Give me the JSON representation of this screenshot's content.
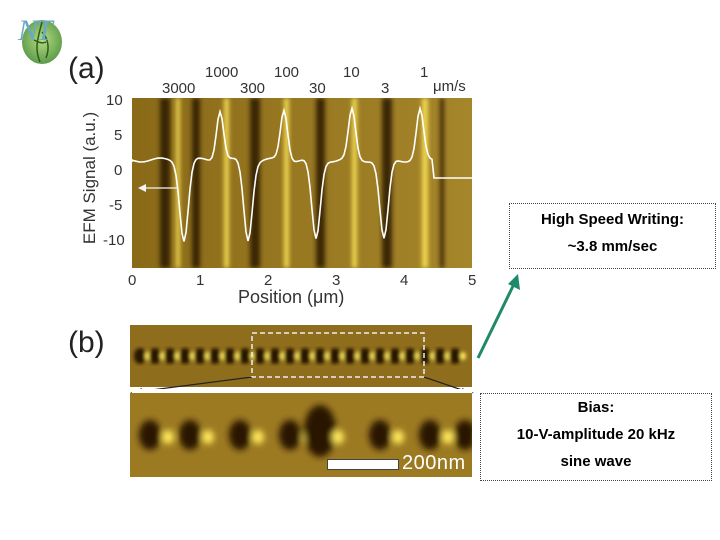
{
  "logo": {
    "text": "NT"
  },
  "panel_a": {
    "label": "(a)",
    "speed_top": [
      "1000",
      "100",
      "10",
      "1"
    ],
    "speed_bottom": [
      "3000",
      "300",
      "30",
      "3"
    ],
    "speed_unit": "μm/s",
    "y_label": "EFM Signal (a.u.)",
    "y_ticks": [
      "10",
      "5",
      "0",
      "-5",
      "-10"
    ],
    "x_ticks": [
      "0",
      "1",
      "2",
      "3",
      "4",
      "5"
    ],
    "x_label": "Position (μm)"
  },
  "panel_b": {
    "label": "(b)",
    "scale_bar": "200nm"
  },
  "note_speed": {
    "line1": "High Speed Writing:",
    "line2": "~3.8 mm/sec"
  },
  "note_bias": {
    "line1": "Bias:",
    "line2": "10-V-amplitude 20 kHz",
    "line3": "sine wave"
  },
  "colors": {
    "afm_base": "#9a7a1e",
    "afm_bright": "#ffe85a",
    "afm_dark": "#2a1606",
    "arrow": "#1f8a6a"
  }
}
